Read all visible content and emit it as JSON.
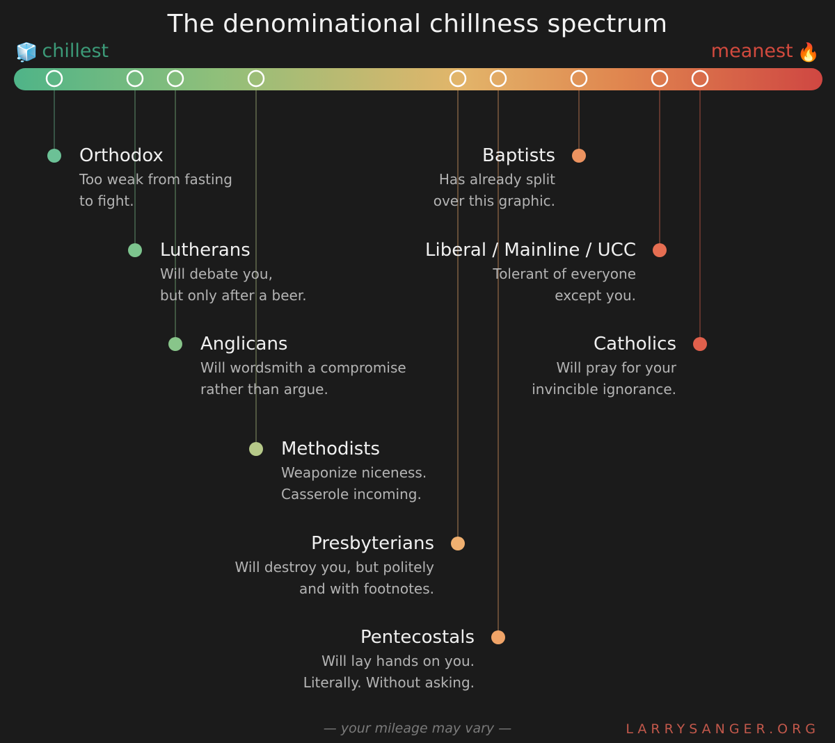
{
  "title": "The denominational chillness spectrum",
  "scale": {
    "left_label": "chillest",
    "left_icon": "ice-cube-icon",
    "right_label": "meanest",
    "right_icon": "fire-icon",
    "left_color": "#3c9a78",
    "right_color": "#d24a3e"
  },
  "denominations": [
    {
      "id": "orthodox",
      "name": "Orthodox",
      "desc": [
        "Too weak from fasting",
        "to fight."
      ],
      "color": "#6cc196"
    },
    {
      "id": "lutherans",
      "name": "Lutherans",
      "desc": [
        "Will debate you,",
        "but only after a beer."
      ],
      "color": "#7dc48e"
    },
    {
      "id": "anglicans",
      "name": "Anglicans",
      "desc": [
        "Will wordsmith a compromise",
        "rather than argue."
      ],
      "color": "#88c58a"
    },
    {
      "id": "methodists",
      "name": "Methodists",
      "desc": [
        "Weaponize niceness.",
        "Casserole incoming."
      ],
      "color": "#b6c989"
    },
    {
      "id": "presbyterians",
      "name": "Presbyterians",
      "desc": [
        "Will destroy you, but politely",
        "and with footnotes."
      ],
      "color": "#f0b070"
    },
    {
      "id": "pentecostals",
      "name": "Pentecostals",
      "desc": [
        "Will lay hands on you.",
        "Literally. Without asking."
      ],
      "color": "#f0a468"
    },
    {
      "id": "baptists",
      "name": "Baptists",
      "desc": [
        "Has already split",
        "over this graphic."
      ],
      "color": "#ec9360"
    },
    {
      "id": "liberal-mainline-ucc",
      "name": "Liberal / Mainline / UCC",
      "desc": [
        "Tolerant of everyone",
        "except you."
      ],
      "color": "#e66e52"
    },
    {
      "id": "catholics",
      "name": "Catholics",
      "desc": [
        "Will pray for your",
        "invincible ignorance."
      ],
      "color": "#e0604c"
    }
  ],
  "footer": "— your mileage may vary —",
  "brand": "LARRYSANGER.ORG"
}
